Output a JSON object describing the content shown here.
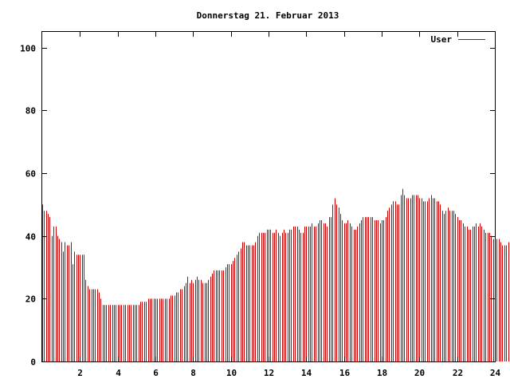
{
  "chart_data": {
    "type": "bar",
    "title": "Donnerstag 21. Februar 2013",
    "xlabel": "",
    "ylabel": "",
    "xlim": [
      0,
      24
    ],
    "ylim": [
      0,
      105
    ],
    "x_ticks": [
      2,
      4,
      6,
      8,
      10,
      12,
      14,
      16,
      18,
      20,
      22,
      24
    ],
    "x_tick_labels": [
      "2",
      "4",
      "6",
      "8",
      "10",
      "12",
      "14",
      "16",
      "18",
      "20",
      "22",
      "24"
    ],
    "y_ticks": [
      0,
      20,
      40,
      60,
      80,
      100
    ],
    "y_tick_labels": [
      "0",
      "20",
      "40",
      "60",
      "80",
      "100"
    ],
    "grid": false,
    "legend_position": "top-right",
    "bar_color": "#cc0000",
    "series": [
      {
        "name": "User",
        "interval_hours": 0.1,
        "values": [
          50,
          48,
          48,
          47,
          46,
          40,
          43,
          43,
          40,
          39,
          38,
          35,
          38,
          37,
          37,
          38,
          31,
          35,
          34,
          34,
          34,
          34,
          34,
          26,
          24,
          23,
          23,
          23,
          23,
          23,
          22,
          20,
          18,
          18,
          18,
          18,
          18,
          18,
          18,
          18,
          18,
          18,
          18,
          18,
          18,
          18,
          18,
          18,
          18,
          18,
          18,
          18,
          19,
          19,
          19,
          19,
          20,
          20,
          20,
          20,
          20,
          20,
          20,
          20,
          20,
          20,
          20,
          20,
          21,
          21,
          21,
          22,
          22,
          23,
          23,
          24,
          25,
          27,
          25,
          26,
          25,
          26,
          27,
          26,
          26,
          25,
          25,
          25,
          26,
          27,
          28,
          29,
          29,
          29,
          29,
          29,
          29,
          30,
          31,
          31,
          31,
          32,
          33,
          34,
          35,
          36,
          38,
          38,
          37,
          37,
          37,
          37,
          37,
          38,
          40,
          41,
          41,
          41,
          41,
          42,
          42,
          42,
          41,
          41,
          42,
          41,
          40,
          41,
          42,
          41,
          41,
          42,
          42,
          43,
          43,
          43,
          42,
          41,
          41,
          43,
          43,
          43,
          43,
          44,
          43,
          43,
          44,
          45,
          45,
          44,
          44,
          43,
          46,
          46,
          50,
          52,
          50,
          49,
          47,
          45,
          44,
          44,
          45,
          44,
          43,
          42,
          42,
          43,
          44,
          45,
          46,
          46,
          46,
          46,
          46,
          46,
          45,
          45,
          45,
          44,
          45,
          45,
          46,
          48,
          49,
          50,
          51,
          51,
          50,
          50,
          53,
          55,
          53,
          52,
          52,
          52,
          53,
          53,
          53,
          53,
          52,
          52,
          51,
          51,
          51,
          52,
          53,
          52,
          52,
          51,
          51,
          50,
          48,
          47,
          48,
          49,
          48,
          48,
          48,
          47,
          46,
          45,
          45,
          44,
          43,
          43,
          42,
          42,
          43,
          43,
          44,
          43,
          44,
          43,
          42,
          41,
          41,
          41,
          40,
          39,
          38,
          39,
          39,
          38,
          37,
          37,
          37,
          38,
          38,
          38,
          38
        ]
      }
    ]
  }
}
